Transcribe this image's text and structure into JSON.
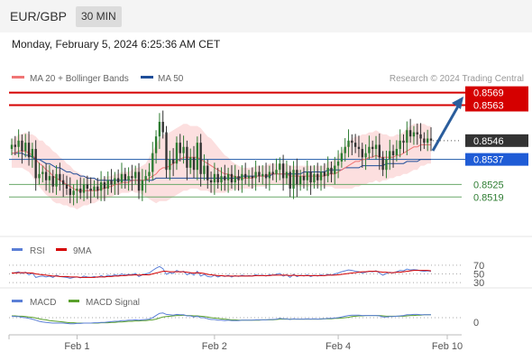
{
  "header": {
    "symbol": "EUR/GBP",
    "timeframe": "30 MIN",
    "datetime": "Monday, February 5, 2024 6:25:36 AM CET"
  },
  "legend": {
    "ma20": "MA 20 + Bollinger Bands",
    "ma50": "MA 50",
    "credit": "Research © 2024 Trading Central",
    "rsi": "RSI",
    "rsi_ma": "9MA",
    "macd": "MACD",
    "macd_signal": "MACD Signal"
  },
  "colors": {
    "up": "#2e7d32",
    "resistance": "#d50000",
    "support": "#1f5aa8",
    "ma20": "#f07575",
    "ma50": "#1f4e99",
    "band": "#fbd4d4",
    "rsi": "#5b7fd6",
    "macd_signal": "#5aa02c"
  },
  "chart_data": {
    "type": "candlestick",
    "price_axis": {
      "min": 0.8507,
      "max": 0.8571
    },
    "x_ticks": [
      "Feb 1",
      "Feb 2",
      "Feb 4",
      "Feb 10"
    ],
    "levels": [
      {
        "value": 0.8569,
        "label": "0.8569",
        "kind": "resistance"
      },
      {
        "value": 0.8563,
        "label": "0.8563",
        "kind": "resistance"
      },
      {
        "value": 0.8546,
        "label": "0.8546",
        "kind": "last"
      },
      {
        "value": 0.8537,
        "label": "0.8537",
        "kind": "pivot"
      },
      {
        "value": 0.8525,
        "label": "0.8525",
        "kind": "support"
      },
      {
        "value": 0.8519,
        "label": "0.8519",
        "kind": "support"
      }
    ],
    "close": [
      0.8544,
      0.8543,
      0.8546,
      0.8541,
      0.8545,
      0.8538,
      0.8542,
      0.8528,
      0.853,
      0.8531,
      0.8527,
      0.8529,
      0.8524,
      0.853,
      0.8527,
      0.8525,
      0.8523,
      0.852,
      0.8522,
      0.8523,
      0.8521,
      0.8525,
      0.8523,
      0.8522,
      0.8524,
      0.8522,
      0.8526,
      0.8523,
      0.8527,
      0.8525,
      0.8528,
      0.8526,
      0.853,
      0.8527,
      0.8529,
      0.8528,
      0.8531,
      0.8522,
      0.8527,
      0.8529,
      0.8531,
      0.854,
      0.8548,
      0.8555,
      0.855,
      0.8532,
      0.8537,
      0.8535,
      0.8545,
      0.854,
      0.8543,
      0.8533,
      0.8538,
      0.8532,
      0.8545,
      0.853,
      0.8534,
      0.8527,
      0.8526,
      0.853,
      0.8526,
      0.8529,
      0.8527,
      0.853,
      0.8526,
      0.8529,
      0.8527,
      0.853,
      0.8528,
      0.8529,
      0.8528,
      0.8531,
      0.8529,
      0.853,
      0.8528,
      0.8531,
      0.853,
      0.8532,
      0.8535,
      0.8528,
      0.8531,
      0.8523,
      0.8532,
      0.8525,
      0.8529,
      0.8527,
      0.8531,
      0.8526,
      0.853,
      0.8527,
      0.8531,
      0.8529,
      0.8533,
      0.853,
      0.8534,
      0.8536,
      0.854,
      0.8543,
      0.8546,
      0.8545,
      0.8543,
      0.8542,
      0.8538,
      0.854,
      0.8543,
      0.8542,
      0.8544,
      0.8538,
      0.8532,
      0.8537,
      0.8541,
      0.8539,
      0.8542,
      0.8546,
      0.8545,
      0.8551,
      0.8548,
      0.855,
      0.8549,
      0.8547,
      0.8545,
      0.8547,
      0.8546
    ],
    "ma20": [
      0.854,
      0.854,
      0.8541,
      0.8541,
      0.8541,
      0.854,
      0.8539,
      0.8537,
      0.8535,
      0.8534,
      0.8532,
      0.8531,
      0.8529,
      0.8528,
      0.8527,
      0.8526,
      0.8525,
      0.8524,
      0.8523,
      0.8522,
      0.8522,
      0.8522,
      0.8522,
      0.8522,
      0.8522,
      0.8522,
      0.8523,
      0.8523,
      0.8524,
      0.8524,
      0.8525,
      0.8525,
      0.8526,
      0.8526,
      0.8526,
      0.8527,
      0.8527,
      0.8527,
      0.8527,
      0.8527,
      0.8528,
      0.8529,
      0.853,
      0.8532,
      0.8533,
      0.8533,
      0.8534,
      0.8535,
      0.8536,
      0.8537,
      0.8538,
      0.8538,
      0.8538,
      0.8538,
      0.8538,
      0.8537,
      0.8536,
      0.8535,
      0.8534,
      0.8533,
      0.8532,
      0.8531,
      0.853,
      0.853,
      0.8529,
      0.8529,
      0.8528,
      0.8528,
      0.8528,
      0.8528,
      0.8528,
      0.8529,
      0.8529,
      0.8529,
      0.8529,
      0.853,
      0.853,
      0.853,
      0.853,
      0.853,
      0.853,
      0.8529,
      0.8529,
      0.8529,
      0.8529,
      0.8529,
      0.8529,
      0.8529,
      0.8529,
      0.8529,
      0.8529,
      0.8529,
      0.853,
      0.853,
      0.853,
      0.8531,
      0.8532,
      0.8533,
      0.8534,
      0.8535,
      0.8536,
      0.8536,
      0.8537,
      0.8537,
      0.8538,
      0.8538,
      0.8539,
      0.8538,
      0.8538,
      0.8538,
      0.8538,
      0.8538,
      0.8539,
      0.8539,
      0.854,
      0.8541,
      0.8542,
      0.8543,
      0.8543,
      0.8544,
      0.8544,
      0.8544,
      0.8544
    ],
    "ma50": [
      0.854,
      0.854,
      0.854,
      0.854,
      0.8539,
      0.8539,
      0.8538,
      0.8537,
      0.8537,
      0.8536,
      0.8535,
      0.8535,
      0.8534,
      0.8533,
      0.8533,
      0.8532,
      0.8531,
      0.8531,
      0.853,
      0.853,
      0.8529,
      0.8529,
      0.8528,
      0.8528,
      0.8528,
      0.8527,
      0.8527,
      0.8527,
      0.8527,
      0.8527,
      0.8527,
      0.8527,
      0.8527,
      0.8527,
      0.8527,
      0.8527,
      0.8527,
      0.8527,
      0.8527,
      0.8527,
      0.8527,
      0.8527,
      0.8528,
      0.8528,
      0.8528,
      0.8528,
      0.8528,
      0.8528,
      0.8528,
      0.8528,
      0.8528,
      0.8528,
      0.8528,
      0.8528,
      0.8528,
      0.8528,
      0.8528,
      0.8528,
      0.8528,
      0.8528,
      0.8528,
      0.8528,
      0.8528,
      0.8528,
      0.8528,
      0.8528,
      0.8528,
      0.8529,
      0.8529,
      0.8529,
      0.8529,
      0.8529,
      0.8529,
      0.8529,
      0.8529,
      0.8529,
      0.853,
      0.853,
      0.853,
      0.853,
      0.853,
      0.853,
      0.853,
      0.853,
      0.853,
      0.8531,
      0.8531,
      0.8531,
      0.8531,
      0.8531,
      0.8531,
      0.8531,
      0.8532,
      0.8532,
      0.8532,
      0.8532,
      0.8532,
      0.8533,
      0.8533,
      0.8533,
      0.8533,
      0.8533,
      0.8534,
      0.8534,
      0.8534,
      0.8534,
      0.8534,
      0.8534,
      0.8534,
      0.8535,
      0.8535,
      0.8535,
      0.8535,
      0.8535,
      0.8535,
      0.8536,
      0.8536,
      0.8536,
      0.8536,
      0.8537,
      0.8537,
      0.8537,
      0.8537
    ],
    "band_width": [
      0.0007,
      0.0007,
      0.0008,
      0.0008,
      0.0009,
      0.0009,
      0.001,
      0.0011,
      0.0011,
      0.0012,
      0.0012,
      0.0012,
      0.0012,
      0.0012,
      0.0011,
      0.0011,
      0.001,
      0.001,
      0.0009,
      0.0009,
      0.0008,
      0.0007,
      0.0007,
      0.0006,
      0.0006,
      0.0005,
      0.0005,
      0.0005,
      0.0005,
      0.0005,
      0.0005,
      0.0005,
      0.0005,
      0.0005,
      0.0005,
      0.0005,
      0.0006,
      0.0006,
      0.0007,
      0.0008,
      0.001,
      0.0012,
      0.0014,
      0.0015,
      0.0016,
      0.0016,
      0.0016,
      0.0016,
      0.0016,
      0.0016,
      0.0016,
      0.0016,
      0.0015,
      0.0015,
      0.0015,
      0.0015,
      0.0014,
      0.0013,
      0.0013,
      0.0012,
      0.0011,
      0.001,
      0.0009,
      0.0008,
      0.0007,
      0.0006,
      0.0006,
      0.0005,
      0.0005,
      0.0005,
      0.0005,
      0.0005,
      0.0005,
      0.0005,
      0.0005,
      0.0005,
      0.0005,
      0.0005,
      0.0005,
      0.0005,
      0.0005,
      0.0005,
      0.0005,
      0.0005,
      0.0005,
      0.0005,
      0.0005,
      0.0005,
      0.0005,
      0.0005,
      0.0005,
      0.0005,
      0.0006,
      0.0006,
      0.0007,
      0.0008,
      0.0009,
      0.001,
      0.0011,
      0.0012,
      0.0012,
      0.0012,
      0.0012,
      0.0012,
      0.0012,
      0.0012,
      0.0012,
      0.0012,
      0.0011,
      0.0011,
      0.001,
      0.001,
      0.001,
      0.001,
      0.001,
      0.0011,
      0.0011,
      0.0011,
      0.0011,
      0.001,
      0.001,
      0.0009,
      0.0009
    ],
    "rsi": [
      52,
      53,
      55,
      51,
      54,
      48,
      52,
      42,
      44,
      45,
      43,
      45,
      42,
      47,
      44,
      43,
      42,
      40,
      42,
      43,
      41,
      45,
      43,
      42,
      44,
      42,
      46,
      43,
      47,
      45,
      48,
      46,
      50,
      47,
      49,
      48,
      51,
      44,
      48,
      50,
      52,
      58,
      63,
      67,
      62,
      49,
      53,
      51,
      58,
      54,
      56,
      48,
      52,
      47,
      56,
      45,
      49,
      44,
      43,
      47,
      43,
      46,
      44,
      47,
      43,
      46,
      44,
      47,
      45,
      46,
      45,
      48,
      46,
      47,
      45,
      48,
      47,
      49,
      51,
      45,
      48,
      42,
      49,
      44,
      47,
      45,
      48,
      44,
      47,
      45,
      48,
      46,
      49,
      47,
      50,
      52,
      55,
      57,
      59,
      58,
      56,
      55,
      52,
      54,
      56,
      55,
      57,
      52,
      47,
      51,
      54,
      52,
      55,
      58,
      57,
      61,
      59,
      60,
      59,
      57,
      56,
      57,
      56
    ],
    "rsi_ma": [
      52,
      52,
      53,
      53,
      53,
      52,
      52,
      50,
      49,
      48,
      47,
      46,
      45,
      45,
      44,
      44,
      44,
      43,
      43,
      43,
      42,
      42,
      42,
      42,
      42,
      43,
      43,
      43,
      44,
      44,
      45,
      45,
      46,
      46,
      47,
      47,
      48,
      47,
      48,
      48,
      48,
      50,
      52,
      54,
      56,
      56,
      55,
      55,
      55,
      55,
      55,
      54,
      53,
      52,
      53,
      52,
      51,
      49,
      48,
      47,
      46,
      46,
      45,
      45,
      45,
      45,
      45,
      45,
      45,
      45,
      45,
      46,
      46,
      46,
      46,
      46,
      47,
      47,
      47,
      47,
      47,
      46,
      47,
      46,
      46,
      46,
      46,
      46,
      46,
      46,
      46,
      46,
      47,
      47,
      47,
      48,
      49,
      50,
      51,
      52,
      53,
      54,
      55,
      55,
      56,
      56,
      56,
      55,
      54,
      54,
      53,
      53,
      54,
      54,
      55,
      56,
      57,
      58,
      58,
      58,
      58,
      58,
      57
    ],
    "macd": [
      4e-05,
      3e-05,
      3e-05,
      1e-05,
      0.0,
      -2e-05,
      -4e-05,
      -7e-05,
      -0.0001,
      -0.00012,
      -0.00013,
      -0.00014,
      -0.00015,
      -0.00015,
      -0.00015,
      -0.00015,
      -0.00016,
      -0.00017,
      -0.00017,
      -0.00016,
      -0.00016,
      -0.00015,
      -0.00015,
      -0.00015,
      -0.00014,
      -0.00014,
      -0.00013,
      -0.00013,
      -0.00012,
      -0.00011,
      -0.0001,
      -0.0001,
      -8e-05,
      -8e-05,
      -7e-05,
      -7e-05,
      -6e-05,
      -7e-05,
      -6e-05,
      -5e-05,
      -4e-05,
      0.0,
      6e-05,
      0.00012,
      0.00013,
      9e-05,
      8e-05,
      7e-05,
      9e-05,
      8e-05,
      8e-05,
      5e-05,
      5e-05,
      2e-05,
      4e-05,
      0.0,
      0.0,
      -3e-05,
      -5e-05,
      -5e-05,
      -7e-05,
      -7e-05,
      -8e-05,
      -7e-05,
      -8e-05,
      -8e-05,
      -8e-05,
      -7e-05,
      -7e-05,
      -7e-05,
      -7e-05,
      -6e-05,
      -6e-05,
      -6e-05,
      -6e-05,
      -5e-05,
      -5e-05,
      -4e-05,
      -2e-05,
      -3e-05,
      -3e-05,
      -5e-05,
      -3e-05,
      -4e-05,
      -4e-05,
      -4e-05,
      -3e-05,
      -4e-05,
      -3e-05,
      -4e-05,
      -3e-05,
      -3e-05,
      -2e-05,
      -2e-05,
      -1e-05,
      0.0,
      2e-05,
      4e-05,
      6e-05,
      7e-05,
      7e-05,
      7e-05,
      6e-05,
      6e-05,
      6e-05,
      6e-05,
      6e-05,
      5e-05,
      2e-05,
      2e-05,
      3e-05,
      3e-05,
      4e-05,
      5e-05,
      6e-05,
      8e-05,
      8e-05,
      9e-05,
      9e-05,
      8e-05,
      8e-05,
      8e-05,
      8e-05
    ],
    "macd_signal": [
      5e-05,
      5e-05,
      4e-05,
      4e-05,
      3e-05,
      2e-05,
      1e-05,
      -1e-05,
      -3e-05,
      -5e-05,
      -6e-05,
      -8e-05,
      -9e-05,
      -0.0001,
      -0.00011,
      -0.00012,
      -0.00013,
      -0.00014,
      -0.00014,
      -0.00015,
      -0.00015,
      -0.00015,
      -0.00015,
      -0.00015,
      -0.00015,
      -0.00015,
      -0.00014,
      -0.00014,
      -0.00014,
      -0.00013,
      -0.00013,
      -0.00012,
      -0.00012,
      -0.00011,
      -0.0001,
      -0.0001,
      -9e-05,
      -9e-05,
      -8e-05,
      -8e-05,
      -7e-05,
      -6e-05,
      -4e-05,
      -1e-05,
      2e-05,
      3e-05,
      4e-05,
      5e-05,
      6e-05,
      6e-05,
      7e-05,
      6e-05,
      6e-05,
      5e-05,
      5e-05,
      4e-05,
      3e-05,
      2e-05,
      0.0,
      -1e-05,
      -2e-05,
      -3e-05,
      -4e-05,
      -5e-05,
      -6e-05,
      -6e-05,
      -7e-05,
      -7e-05,
      -7e-05,
      -7e-05,
      -7e-05,
      -7e-05,
      -7e-05,
      -6e-05,
      -6e-05,
      -6e-05,
      -6e-05,
      -5e-05,
      -4e-05,
      -4e-05,
      -4e-05,
      -4e-05,
      -4e-05,
      -4e-05,
      -4e-05,
      -4e-05,
      -4e-05,
      -4e-05,
      -4e-05,
      -4e-05,
      -4e-05,
      -3e-05,
      -3e-05,
      -3e-05,
      -2e-05,
      -2e-05,
      -1e-05,
      0.0,
      1e-05,
      3e-05,
      4e-05,
      5e-05,
      5e-05,
      6e-05,
      6e-05,
      6e-05,
      6e-05,
      6e-05,
      5e-05,
      4e-05,
      4e-05,
      4e-05,
      4e-05,
      4e-05,
      4e-05,
      5e-05,
      6e-05,
      6e-05,
      7e-05,
      7e-05,
      8e-05,
      8e-05,
      8e-05
    ],
    "rsi_ticks": [
      "70",
      "50",
      "30"
    ],
    "macd_ticks": [
      "0"
    ]
  }
}
